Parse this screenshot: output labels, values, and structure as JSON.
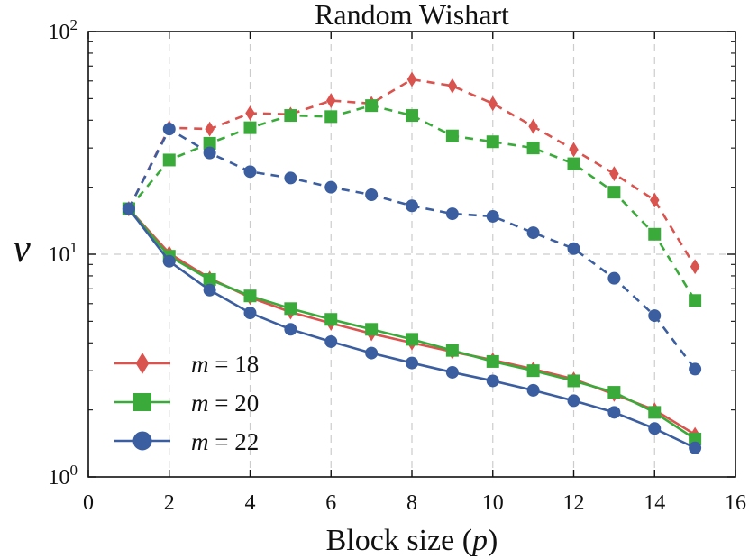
{
  "chart_data": {
    "type": "line",
    "title": "Random Wishart",
    "xlabel": "Block size (p)",
    "ylabel": "ν",
    "xlim": [
      0,
      16
    ],
    "ylim": [
      1,
      100
    ],
    "yscale": "log",
    "xticks": [
      0,
      2,
      4,
      6,
      8,
      10,
      12,
      14,
      16
    ],
    "yticks": [
      {
        "value": 1,
        "base": "10",
        "exp": "0"
      },
      {
        "value": 10,
        "base": "10",
        "exp": "1"
      },
      {
        "value": 100,
        "base": "10",
        "exp": "2"
      }
    ],
    "grid": true,
    "legend_position": "lower-left",
    "x": [
      1,
      2,
      3,
      4,
      5,
      6,
      7,
      8,
      9,
      10,
      11,
      12,
      13,
      14,
      15
    ],
    "series": [
      {
        "name": "m = 18",
        "color": "#d9534f",
        "marker": "diamond",
        "solid": [
          16.0,
          10.1,
          7.8,
          6.4,
          5.5,
          4.9,
          4.4,
          4.0,
          3.65,
          3.35,
          3.05,
          2.75,
          2.35,
          2.0,
          1.55
        ],
        "dashed": [
          16.0,
          37.0,
          36.5,
          43.0,
          42.5,
          49.0,
          47.5,
          61.0,
          57.0,
          47.5,
          37.5,
          29.5,
          23.0,
          17.5,
          8.8
        ]
      },
      {
        "name": "m = 20",
        "color": "#3aaa3a",
        "marker": "square",
        "solid": [
          16.0,
          9.8,
          7.7,
          6.5,
          5.7,
          5.1,
          4.6,
          4.15,
          3.7,
          3.3,
          3.0,
          2.7,
          2.4,
          1.95,
          1.48
        ],
        "dashed": [
          16.0,
          26.5,
          31.5,
          37.0,
          42.0,
          41.5,
          46.5,
          42.0,
          34.0,
          32.0,
          30.0,
          25.5,
          19.0,
          12.3,
          6.2
        ]
      },
      {
        "name": "m = 22",
        "color": "#3b5ea0",
        "marker": "circle",
        "solid": [
          16.0,
          9.3,
          6.9,
          5.45,
          4.6,
          4.05,
          3.6,
          3.25,
          2.95,
          2.7,
          2.45,
          2.2,
          1.95,
          1.65,
          1.35
        ],
        "dashed": [
          16.0,
          36.5,
          28.5,
          23.5,
          22.0,
          20.0,
          18.5,
          16.5,
          15.2,
          14.8,
          12.5,
          10.6,
          7.8,
          5.3,
          3.05
        ]
      }
    ]
  }
}
